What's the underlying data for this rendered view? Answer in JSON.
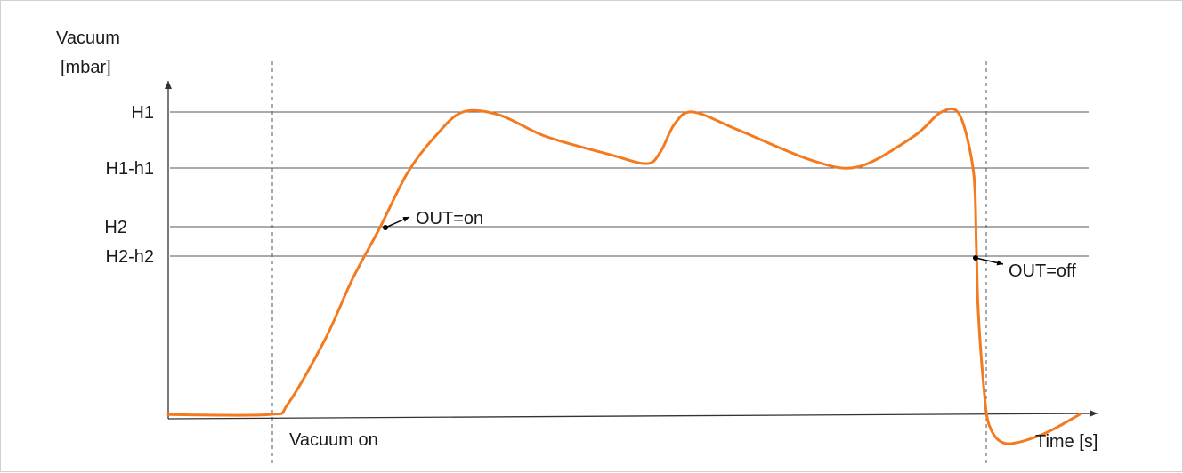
{
  "chart_data": {
    "type": "line",
    "ylabel_line1": "Vacuum",
    "ylabel_line2": "[mbar]",
    "xlabel": "Time [s]",
    "levels": [
      {
        "name": "H1",
        "value": 100
      },
      {
        "name": "H1-h1",
        "value": 81
      },
      {
        "name": "H2",
        "value": 62
      },
      {
        "name": "H2-h2",
        "value": 52
      }
    ],
    "events": [
      {
        "name": "vacuum_on",
        "label": "Vacuum on",
        "t": 11
      },
      {
        "name": "vacuum_off",
        "label": "",
        "t": 91.5
      }
    ],
    "annotations": [
      {
        "name": "out-on",
        "label": "OUT=on",
        "t": 23.5,
        "v": 63
      },
      {
        "name": "out-off",
        "label": "OUT=off",
        "t": 87.8,
        "v": 53
      }
    ],
    "series": [
      {
        "color": "#f47a20",
        "points": [
          [
            0,
            0.5
          ],
          [
            11,
            0.5
          ],
          [
            13,
            4
          ],
          [
            17,
            25
          ],
          [
            20,
            45
          ],
          [
            23,
            62
          ],
          [
            26,
            80
          ],
          [
            29,
            92
          ],
          [
            32,
            100
          ],
          [
            36,
            99
          ],
          [
            41,
            92
          ],
          [
            48,
            86
          ],
          [
            52,
            83
          ],
          [
            53.5,
            87
          ],
          [
            55,
            96
          ],
          [
            57,
            100
          ],
          [
            62,
            94
          ],
          [
            70,
            84
          ],
          [
            75,
            82
          ],
          [
            81,
            92
          ],
          [
            84,
            100
          ],
          [
            86,
            99
          ],
          [
            87.5,
            80
          ],
          [
            87.8,
            55
          ],
          [
            88,
            35
          ],
          [
            88.6,
            10
          ],
          [
            89.2,
            -3
          ],
          [
            91,
            -9
          ],
          [
            95,
            -6
          ],
          [
            99,
            0.5
          ]
        ]
      }
    ],
    "xlim": [
      0,
      100
    ],
    "ylim": [
      -10,
      110
    ],
    "grid": false,
    "legend": "none"
  }
}
